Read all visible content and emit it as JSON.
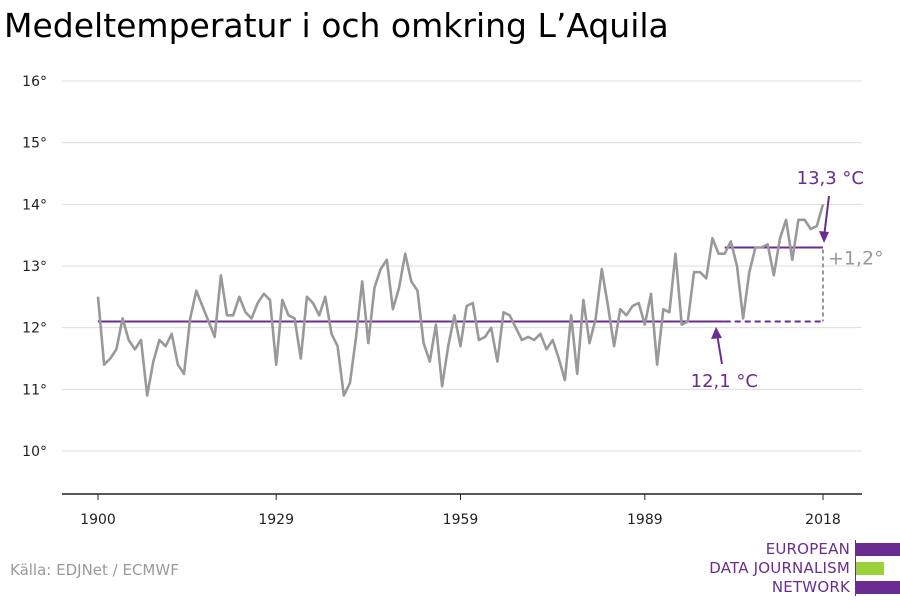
{
  "title": "Medeltemperatur i och omkring L’Aquila",
  "source": "Källa: EDJNet / ECMWF",
  "logo": {
    "line1": "EUROPEAN",
    "line2": "DATA JOURNALISM",
    "line3": "NETWORK"
  },
  "colors": {
    "line": "#999999",
    "accent": "#6a2c91",
    "grid": "#dddddd",
    "logo_green": "#9bd13a"
  },
  "chart_data": {
    "type": "line",
    "title": "Medeltemperatur i och omkring L’Aquila",
    "xlabel": "",
    "ylabel": "",
    "xlim": [
      1900,
      2018
    ],
    "ylim": [
      10,
      16
    ],
    "x_ticks": [
      1900,
      1929,
      1959,
      1989,
      2018
    ],
    "y_ticks": [
      {
        "value": 10,
        "label": "10°"
      },
      {
        "value": 11,
        "label": "11°"
      },
      {
        "value": 12,
        "label": "12°"
      },
      {
        "value": 13,
        "label": "13°"
      },
      {
        "value": 14,
        "label": "14°"
      },
      {
        "value": 15,
        "label": "15°"
      },
      {
        "value": 16,
        "label": "16°"
      }
    ],
    "grid": true,
    "x": [
      1900,
      1901,
      1902,
      1903,
      1904,
      1905,
      1906,
      1907,
      1908,
      1909,
      1910,
      1911,
      1912,
      1913,
      1914,
      1915,
      1916,
      1917,
      1918,
      1919,
      1920,
      1921,
      1922,
      1923,
      1924,
      1925,
      1926,
      1927,
      1928,
      1929,
      1930,
      1931,
      1932,
      1933,
      1934,
      1935,
      1936,
      1937,
      1938,
      1939,
      1940,
      1941,
      1942,
      1943,
      1944,
      1945,
      1946,
      1947,
      1948,
      1949,
      1950,
      1951,
      1952,
      1953,
      1954,
      1955,
      1956,
      1957,
      1958,
      1959,
      1960,
      1961,
      1962,
      1963,
      1964,
      1965,
      1966,
      1967,
      1968,
      1969,
      1970,
      1971,
      1972,
      1973,
      1974,
      1975,
      1976,
      1977,
      1978,
      1979,
      1980,
      1981,
      1982,
      1983,
      1984,
      1985,
      1986,
      1987,
      1988,
      1989,
      1990,
      1991,
      1992,
      1993,
      1994,
      1995,
      1996,
      1997,
      1998,
      1999,
      2000,
      2001,
      2002,
      2003,
      2004,
      2005,
      2006,
      2007,
      2008,
      2009,
      2010,
      2011,
      2012,
      2013,
      2014,
      2015,
      2016,
      2017,
      2018
    ],
    "series": [
      {
        "values": [
          12.5,
          11.4,
          11.5,
          11.65,
          12.15,
          11.8,
          11.65,
          11.8,
          10.9,
          11.45,
          11.8,
          11.7,
          11.9,
          11.4,
          11.25,
          12.15,
          12.6,
          12.35,
          12.1,
          11.85,
          12.85,
          12.2,
          12.2,
          12.5,
          12.25,
          12.15,
          12.4,
          12.55,
          12.45,
          11.4,
          12.45,
          12.2,
          12.15,
          11.5,
          12.5,
          12.4,
          12.2,
          12.5,
          11.9,
          11.7,
          10.9,
          11.1,
          11.85,
          12.75,
          11.75,
          12.65,
          12.95,
          13.1,
          12.3,
          12.65,
          13.2,
          12.75,
          12.6,
          11.75,
          11.45,
          12.05,
          11.05,
          11.7,
          12.2,
          11.7,
          12.35,
          12.4,
          11.8,
          11.85,
          12.0,
          11.45,
          12.25,
          12.2,
          12.0,
          11.8,
          11.85,
          11.8,
          11.9,
          11.65,
          11.8,
          11.5,
          11.15,
          12.2,
          11.25,
          12.45,
          11.75,
          12.15,
          12.95,
          12.35,
          11.7,
          12.3,
          12.2,
          12.35,
          12.4,
          12.05,
          12.55,
          11.4,
          12.3,
          12.25,
          13.2,
          12.05,
          12.1,
          12.9,
          12.9,
          12.8,
          13.45,
          13.2,
          13.2,
          13.4,
          13.0,
          12.15,
          12.9,
          13.3,
          13.3,
          13.35,
          12.85,
          13.45,
          13.75,
          13.1,
          13.75,
          13.75,
          13.6,
          13.65,
          14.0
        ]
      }
    ],
    "baseline": {
      "value": 12.1,
      "from": 1900,
      "to": 2002
    },
    "baseline_extension": {
      "value": 12.1,
      "from": 2002,
      "to": 2018
    },
    "recent_level": {
      "value": 13.3,
      "from": 2002,
      "to": 2018
    },
    "annotations": {
      "recent": "13,3 °C",
      "baseline": "12,1 °C",
      "difference": "+1,2°"
    }
  }
}
